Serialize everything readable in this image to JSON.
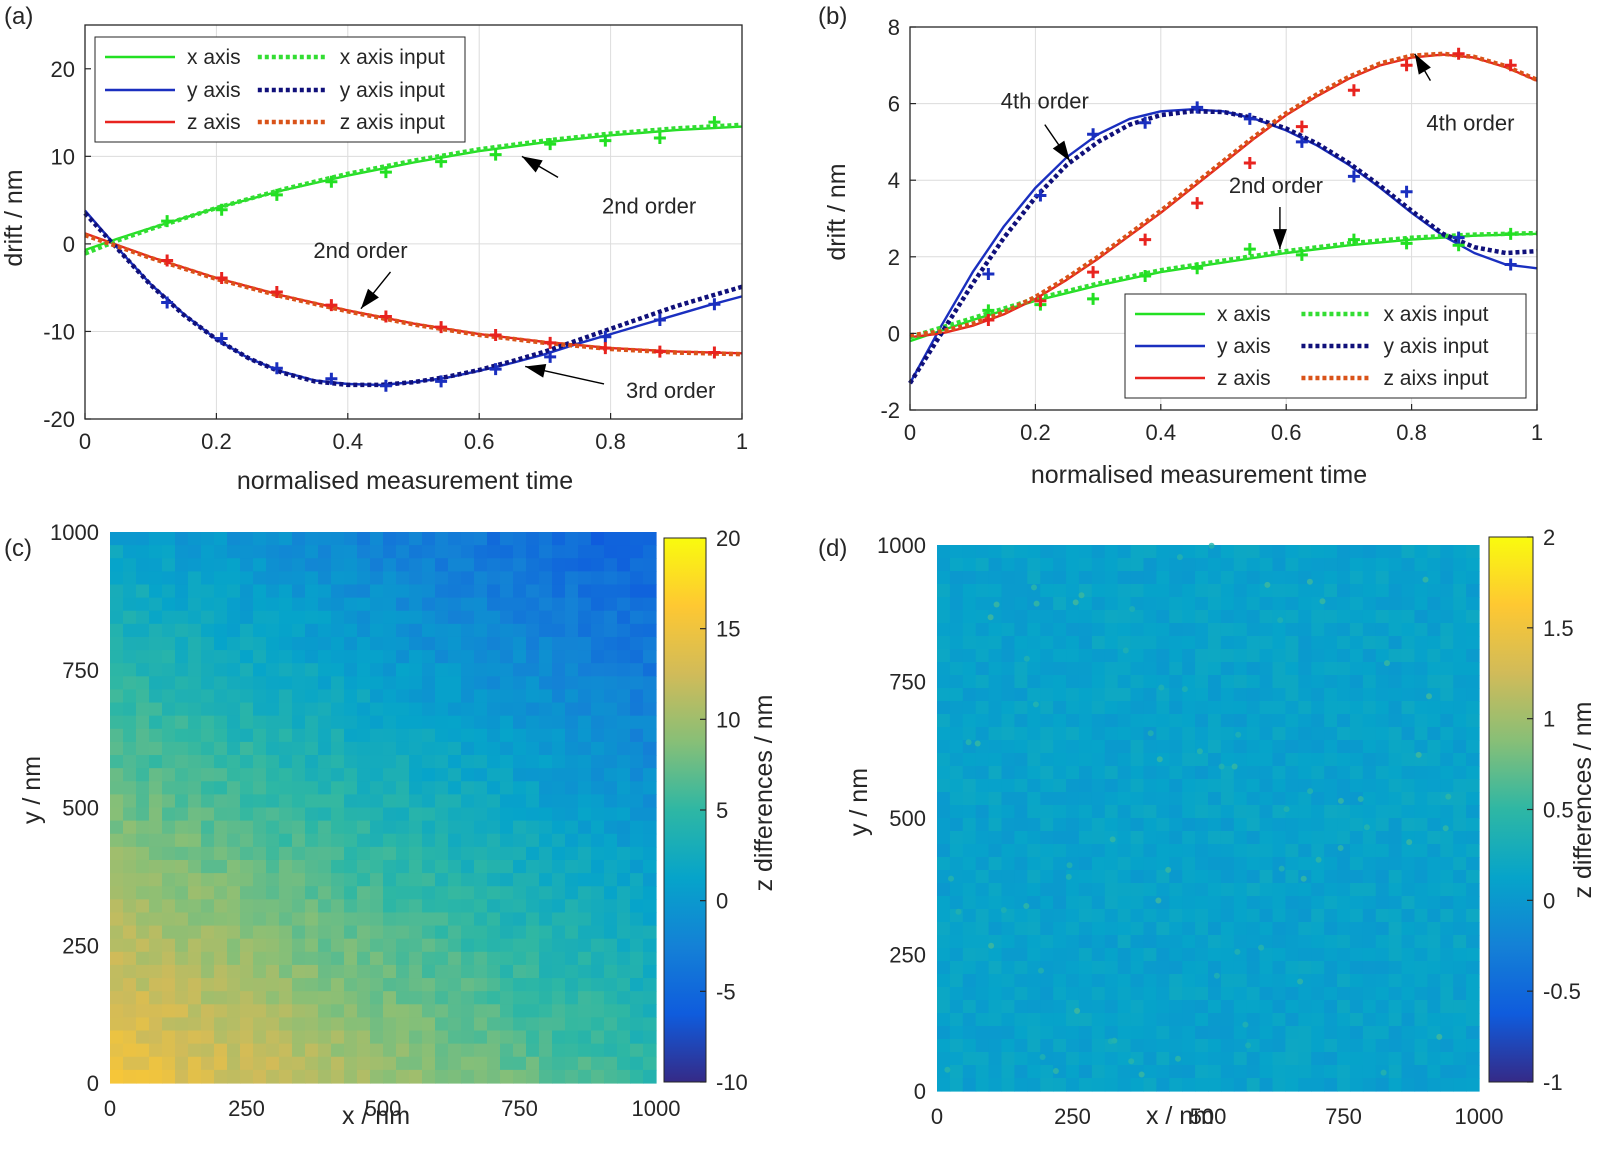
{
  "chart_data": [
    {
      "panel": "(a)",
      "type": "line",
      "xlabel": "normalised measurement time",
      "ylabel": "drift / nm",
      "xlim": [
        0,
        1
      ],
      "ylim": [
        -20,
        25
      ],
      "xticks": [
        0,
        0.2,
        0.4,
        0.6,
        0.8,
        1
      ],
      "yticks": [
        -20,
        -10,
        0,
        10,
        20
      ],
      "grid": true,
      "legend_position": "top-left",
      "series": [
        {
          "name": "x axis",
          "color": "#22e022",
          "style": "solid",
          "x": [
            0,
            0.05,
            0.1,
            0.2,
            0.3,
            0.4,
            0.5,
            0.6,
            0.7,
            0.8,
            0.9,
            1.0
          ],
          "y": [
            -0.7,
            0.6,
            1.8,
            4.1,
            6.1,
            7.8,
            9.3,
            10.6,
            11.6,
            12.4,
            13.0,
            13.4
          ]
        },
        {
          "name": "x axis input",
          "color": "#33dd33",
          "style": "dotted",
          "x": [
            0,
            0.05,
            0.1,
            0.2,
            0.3,
            0.4,
            0.5,
            0.6,
            0.7,
            0.8,
            0.9,
            1.0
          ],
          "y": [
            -1.1,
            0.4,
            1.7,
            4.1,
            6.2,
            8.0,
            9.5,
            10.8,
            11.8,
            12.6,
            13.2,
            13.6
          ]
        },
        {
          "name": "y axis",
          "color": "#1a2fbf",
          "style": "solid",
          "x": [
            0,
            0.05,
            0.1,
            0.15,
            0.2,
            0.25,
            0.3,
            0.35,
            0.4,
            0.45,
            0.5,
            0.55,
            0.6,
            0.65,
            0.7,
            0.75,
            0.8,
            0.85,
            0.9,
            0.95,
            1.0
          ],
          "y": [
            3.8,
            -0.5,
            -4.6,
            -8.0,
            -10.9,
            -13.1,
            -14.6,
            -15.6,
            -16.0,
            -16.1,
            -15.8,
            -15.3,
            -14.5,
            -13.6,
            -12.6,
            -11.4,
            -10.3,
            -9.2,
            -8.1,
            -7.0,
            -6.0
          ]
        },
        {
          "name": "y axis input",
          "color": "#10107a",
          "style": "dotted",
          "x": [
            0,
            0.05,
            0.1,
            0.15,
            0.2,
            0.25,
            0.3,
            0.35,
            0.4,
            0.45,
            0.5,
            0.55,
            0.6,
            0.65,
            0.7,
            0.75,
            0.8,
            0.85,
            0.9,
            0.95,
            1.0
          ],
          "y": [
            3.5,
            -0.6,
            -4.7,
            -8.1,
            -10.9,
            -13.1,
            -14.7,
            -15.7,
            -16.1,
            -16.1,
            -15.8,
            -15.2,
            -14.4,
            -13.4,
            -12.3,
            -11.0,
            -9.7,
            -8.4,
            -7.1,
            -6.0,
            -4.9
          ]
        },
        {
          "name": "z axis",
          "color": "#e8231f",
          "style": "solid",
          "x": [
            0,
            0.1,
            0.2,
            0.3,
            0.4,
            0.5,
            0.6,
            0.7,
            0.8,
            0.9,
            1.0
          ],
          "y": [
            1.2,
            -1.5,
            -3.9,
            -5.9,
            -7.6,
            -9.1,
            -10.3,
            -11.2,
            -11.9,
            -12.3,
            -12.5
          ]
        },
        {
          "name": "z axis input",
          "color": "#d95319",
          "style": "dotted",
          "x": [
            0,
            0.1,
            0.2,
            0.3,
            0.4,
            0.5,
            0.6,
            0.7,
            0.8,
            0.9,
            1.0
          ],
          "y": [
            1.0,
            -1.6,
            -4.0,
            -6.0,
            -7.7,
            -9.2,
            -10.4,
            -11.3,
            -12.0,
            -12.4,
            -12.6
          ]
        }
      ],
      "markers": [
        {
          "color": "#22e022",
          "x": [
            0.125,
            0.208,
            0.292,
            0.375,
            0.458,
            0.542,
            0.625,
            0.708,
            0.792,
            0.875,
            0.958
          ],
          "y": [
            2.6,
            3.9,
            5.6,
            7.1,
            8.2,
            9.4,
            10.2,
            11.4,
            11.8,
            12.1,
            13.9
          ]
        },
        {
          "color": "#1a2fbf",
          "x": [
            0.125,
            0.208,
            0.292,
            0.375,
            0.458,
            0.542,
            0.625,
            0.708,
            0.792,
            0.875,
            0.958
          ],
          "y": [
            -6.7,
            -10.8,
            -14.2,
            -15.4,
            -16.2,
            -15.7,
            -14.3,
            -12.9,
            -10.6,
            -8.7,
            -6.9
          ]
        },
        {
          "color": "#e8231f",
          "x": [
            0.125,
            0.208,
            0.292,
            0.375,
            0.458,
            0.542,
            0.625,
            0.708,
            0.792,
            0.875,
            0.958
          ],
          "y": [
            -1.9,
            -3.9,
            -5.5,
            -7.0,
            -8.3,
            -9.5,
            -10.4,
            -11.3,
            -11.9,
            -12.3,
            -12.4
          ]
        }
      ],
      "annotations": [
        {
          "text": "2nd order",
          "arrow_from": [
            0.72,
            7.6
          ],
          "arrow_to": [
            0.665,
            10.0
          ]
        },
        {
          "text": "2nd order",
          "arrow_from": [
            0.465,
            -3.2
          ],
          "arrow_to": [
            0.42,
            -7.4
          ]
        },
        {
          "text": "3rd order",
          "arrow_from": [
            0.79,
            -16.0
          ],
          "arrow_to": [
            0.67,
            -14.0
          ]
        }
      ]
    },
    {
      "panel": "(b)",
      "type": "line",
      "xlabel": "normalised measurement time",
      "ylabel": "drift / nm",
      "xlim": [
        0,
        1
      ],
      "ylim": [
        -2,
        8
      ],
      "xticks": [
        0,
        0.2,
        0.4,
        0.6,
        0.8,
        1
      ],
      "yticks": [
        -2,
        0,
        2,
        4,
        6,
        8
      ],
      "grid": true,
      "legend_position": "bottom-right",
      "series": [
        {
          "name": "x axis",
          "color": "#22e022",
          "style": "solid",
          "x": [
            0,
            0.1,
            0.2,
            0.3,
            0.4,
            0.5,
            0.6,
            0.7,
            0.8,
            0.9,
            1.0
          ],
          "y": [
            -0.2,
            0.35,
            0.85,
            1.25,
            1.6,
            1.85,
            2.1,
            2.3,
            2.45,
            2.55,
            2.6
          ]
        },
        {
          "name": "x axis input",
          "color": "#33dd33",
          "style": "dotted",
          "x": [
            0,
            0.1,
            0.2,
            0.3,
            0.4,
            0.5,
            0.6,
            0.7,
            0.8,
            0.9,
            1.0
          ],
          "y": [
            -0.1,
            0.4,
            0.9,
            1.3,
            1.65,
            1.9,
            2.15,
            2.35,
            2.5,
            2.58,
            2.62
          ]
        },
        {
          "name": "y axis",
          "color": "#1a2fbf",
          "style": "solid",
          "x": [
            0,
            0.05,
            0.1,
            0.15,
            0.2,
            0.25,
            0.3,
            0.35,
            0.4,
            0.45,
            0.5,
            0.55,
            0.6,
            0.65,
            0.7,
            0.75,
            0.8,
            0.85,
            0.9,
            0.95,
            1.0
          ],
          "y": [
            -1.3,
            0.2,
            1.6,
            2.8,
            3.8,
            4.6,
            5.2,
            5.6,
            5.8,
            5.85,
            5.8,
            5.6,
            5.3,
            4.9,
            4.4,
            3.8,
            3.15,
            2.55,
            2.1,
            1.8,
            1.7
          ]
        },
        {
          "name": "y axis input",
          "color": "#10107a",
          "style": "dotted",
          "x": [
            0,
            0.05,
            0.1,
            0.15,
            0.2,
            0.25,
            0.3,
            0.35,
            0.4,
            0.45,
            0.5,
            0.55,
            0.6,
            0.65,
            0.7,
            0.75,
            0.8,
            0.85,
            0.9,
            0.95,
            1.0
          ],
          "y": [
            -1.3,
            0.0,
            1.3,
            2.5,
            3.55,
            4.4,
            5.0,
            5.45,
            5.7,
            5.8,
            5.78,
            5.62,
            5.35,
            4.95,
            4.45,
            3.85,
            3.2,
            2.6,
            2.25,
            2.1,
            2.15
          ]
        },
        {
          "name": "z axis",
          "color": "#e8231f",
          "style": "solid",
          "x": [
            0,
            0.05,
            0.1,
            0.15,
            0.2,
            0.25,
            0.3,
            0.35,
            0.4,
            0.45,
            0.5,
            0.55,
            0.6,
            0.65,
            0.7,
            0.75,
            0.8,
            0.85,
            0.9,
            0.95,
            1.0
          ],
          "y": [
            -0.1,
            0.0,
            0.2,
            0.5,
            0.9,
            1.4,
            1.95,
            2.55,
            3.15,
            3.8,
            4.45,
            5.1,
            5.7,
            6.2,
            6.65,
            7.0,
            7.2,
            7.28,
            7.2,
            6.95,
            6.6
          ]
        },
        {
          "name": "z aixs input",
          "color": "#d95319",
          "style": "dotted",
          "x": [
            0,
            0.05,
            0.1,
            0.15,
            0.2,
            0.25,
            0.3,
            0.35,
            0.4,
            0.45,
            0.5,
            0.55,
            0.6,
            0.65,
            0.7,
            0.75,
            0.8,
            0.85,
            0.9,
            0.95,
            1.0
          ],
          "y": [
            -0.05,
            0.05,
            0.25,
            0.55,
            0.95,
            1.45,
            2.0,
            2.6,
            3.2,
            3.85,
            4.5,
            5.15,
            5.75,
            6.25,
            6.7,
            7.05,
            7.25,
            7.3,
            7.22,
            6.98,
            6.62
          ]
        }
      ],
      "markers": [
        {
          "color": "#22e022",
          "x": [
            0.125,
            0.208,
            0.292,
            0.375,
            0.458,
            0.542,
            0.625,
            0.708,
            0.792,
            0.875,
            0.958
          ],
          "y": [
            0.6,
            0.75,
            0.9,
            1.5,
            1.7,
            2.2,
            2.05,
            2.45,
            2.35,
            2.3,
            2.6
          ]
        },
        {
          "color": "#1a2fbf",
          "x": [
            0.125,
            0.208,
            0.292,
            0.375,
            0.458,
            0.542,
            0.625,
            0.708,
            0.792,
            0.875,
            0.958
          ],
          "y": [
            1.55,
            3.6,
            5.2,
            5.5,
            5.9,
            5.6,
            5.0,
            4.1,
            3.7,
            2.5,
            1.8
          ]
        },
        {
          "color": "#e8231f",
          "x": [
            0.125,
            0.208,
            0.292,
            0.375,
            0.458,
            0.542,
            0.625,
            0.708,
            0.792,
            0.875,
            0.958
          ],
          "y": [
            0.35,
            0.85,
            1.6,
            2.45,
            3.4,
            4.45,
            5.4,
            6.35,
            7.0,
            7.3,
            7.0
          ]
        }
      ],
      "annotations": [
        {
          "text": "4th order",
          "arrow_from": [
            0.215,
            5.45
          ],
          "arrow_to": [
            0.255,
            4.5
          ]
        },
        {
          "text": "4th order",
          "arrow_from": [
            0.83,
            6.6
          ],
          "arrow_to": [
            0.805,
            7.3
          ]
        },
        {
          "text": "2nd order",
          "arrow_from": [
            0.59,
            3.3
          ],
          "arrow_to": [
            0.59,
            2.2
          ]
        }
      ]
    },
    {
      "panel": "(c)",
      "type": "heatmap",
      "xlabel": "x / nm",
      "ylabel": "y / nm",
      "colorbar_label": "z differences / nm",
      "xlim": [
        0,
        1000
      ],
      "ylim": [
        0,
        1000
      ],
      "clim": [
        -10,
        20
      ],
      "xticks": [
        0,
        250,
        500,
        750,
        1000
      ],
      "yticks": [
        0,
        250,
        500,
        750,
        1000
      ],
      "colorbar_ticks": [
        -10,
        -5,
        0,
        5,
        10,
        15,
        20
      ],
      "colormap": "parula",
      "field_model": {
        "corner_x0_y0": 15,
        "corner_x1000_y0": 5,
        "corner_x0_y1000": 1,
        "corner_x1000_y1000": -6
      }
    },
    {
      "panel": "(d)",
      "type": "heatmap",
      "xlabel": "x / nm",
      "ylabel": "y / nm",
      "colorbar_label": "z differences / nm",
      "xlim": [
        0,
        1000
      ],
      "ylim": [
        0,
        1000
      ],
      "clim": [
        -1,
        2
      ],
      "xticks": [
        0,
        250,
        500,
        750,
        1000
      ],
      "yticks": [
        0,
        250,
        500,
        750,
        1000
      ],
      "colorbar_ticks": [
        -1,
        -0.5,
        0,
        0.5,
        1,
        1.5,
        2
      ],
      "colormap": "parula",
      "field_model": {
        "mean": 0.1,
        "spread": 0.1
      }
    }
  ]
}
